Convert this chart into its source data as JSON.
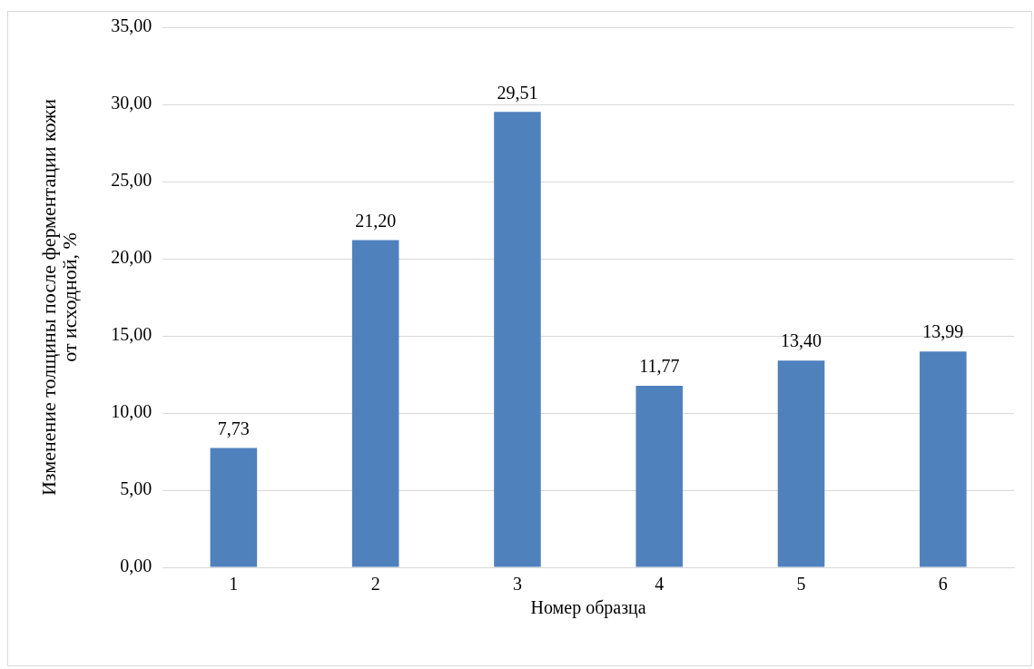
{
  "chart_data": {
    "type": "bar",
    "xlabel": "Номер образца",
    "ylabel": "Изменение толщины после ферментации кожи\nот исходной, %",
    "categories": [
      "1",
      "2",
      "3",
      "4",
      "5",
      "6"
    ],
    "values": [
      7.73,
      21.2,
      29.51,
      11.77,
      13.4,
      13.99
    ],
    "value_labels": [
      "7,73",
      "21,20",
      "29,51",
      "11,77",
      "13,40",
      "13,99"
    ],
    "color": "#4f81bd",
    "ylim": [
      0,
      35
    ],
    "yticks": [
      {
        "value": 0,
        "label": "0,00"
      },
      {
        "value": 5,
        "label": "5,00"
      },
      {
        "value": 10,
        "label": "10,00"
      },
      {
        "value": 15,
        "label": "15,00"
      },
      {
        "value": 20,
        "label": "20,00"
      },
      {
        "value": 25,
        "label": "25,00"
      },
      {
        "value": 30,
        "label": "30,00"
      },
      {
        "value": 35,
        "label": "35,00"
      }
    ],
    "grid": "y"
  }
}
